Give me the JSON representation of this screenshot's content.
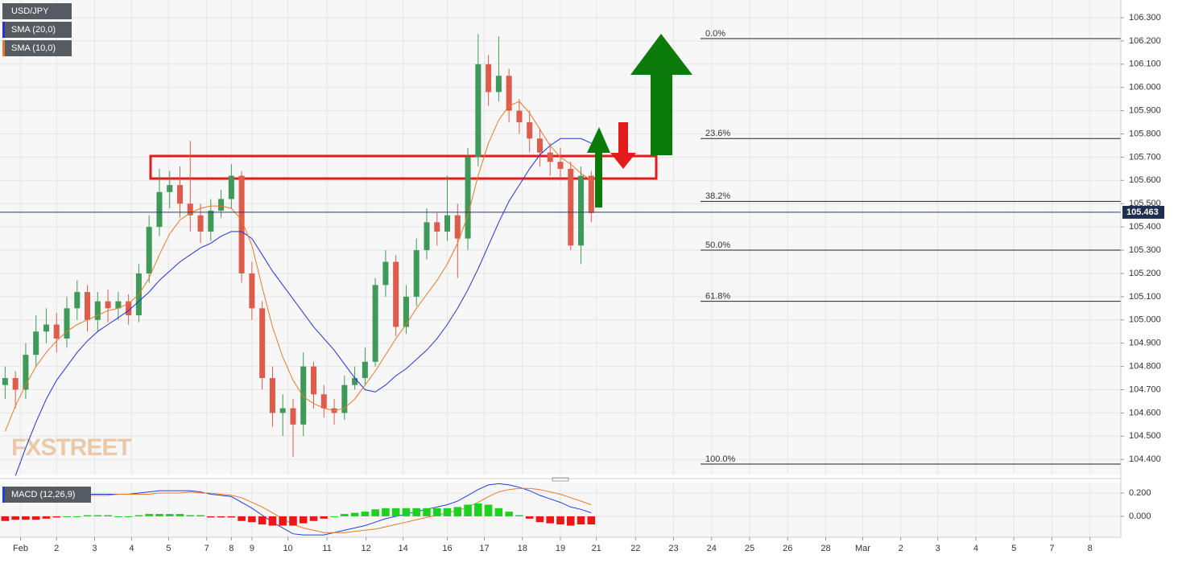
{
  "chart_data": [
    {
      "type": "candlestick",
      "name": "USD/JPY",
      "watermark": "FXSTREET",
      "up_color": "#3f9a5a",
      "down_color": "#dd5c4c",
      "x": [
        0,
        1,
        2,
        3,
        4,
        5,
        6,
        7,
        8,
        9,
        10,
        11,
        12,
        13,
        14,
        15,
        16,
        17,
        18,
        19,
        20,
        21,
        22,
        23,
        24,
        25,
        26,
        27,
        28,
        29,
        30,
        31,
        32,
        33,
        34,
        35,
        36,
        37,
        38,
        39,
        40,
        41,
        42,
        43,
        44,
        45,
        46,
        47,
        48,
        49,
        50,
        51,
        52,
        53,
        54,
        55,
        56,
        57
      ],
      "open": [
        104.72,
        104.75,
        104.7,
        104.85,
        104.95,
        104.98,
        104.92,
        105.05,
        105.12,
        105.0,
        105.08,
        105.05,
        105.08,
        105.02,
        105.2,
        105.4,
        105.55,
        105.58,
        105.5,
        105.45,
        105.38,
        105.47,
        105.52,
        105.62,
        105.2,
        105.05,
        104.75,
        104.6,
        104.62,
        104.55,
        104.8,
        104.68,
        104.62,
        104.6,
        104.72,
        104.75,
        104.82,
        105.15,
        105.25,
        104.97,
        105.1,
        105.3,
        105.42,
        105.38,
        105.45,
        105.35,
        105.7,
        106.1,
        105.98,
        106.05,
        105.9,
        105.85,
        105.78,
        105.72,
        105.68,
        105.65,
        105.32,
        105.62
      ],
      "high": [
        104.8,
        104.78,
        104.9,
        105.02,
        105.05,
        105.03,
        105.1,
        105.17,
        105.15,
        105.12,
        105.13,
        105.12,
        105.11,
        105.24,
        105.45,
        105.65,
        105.64,
        105.66,
        105.77,
        105.5,
        105.52,
        105.56,
        105.67,
        105.64,
        105.25,
        105.08,
        104.8,
        104.68,
        104.66,
        104.86,
        104.82,
        104.72,
        104.66,
        104.76,
        104.8,
        104.88,
        105.18,
        105.3,
        105.28,
        105.15,
        105.35,
        105.48,
        105.46,
        105.62,
        105.5,
        105.74,
        106.23,
        106.14,
        106.22,
        106.08,
        105.95,
        105.9,
        105.82,
        105.76,
        105.74,
        105.68,
        105.66,
        105.64
      ],
      "low": [
        104.66,
        104.62,
        104.66,
        104.8,
        104.9,
        104.86,
        104.88,
        105.0,
        104.95,
        104.95,
        104.99,
        105.0,
        104.98,
        104.99,
        105.16,
        105.36,
        105.48,
        105.44,
        105.38,
        105.33,
        105.34,
        105.44,
        105.48,
        105.16,
        105.0,
        104.7,
        104.54,
        104.5,
        104.41,
        104.5,
        104.62,
        104.58,
        104.55,
        104.57,
        104.7,
        104.72,
        104.8,
        105.1,
        104.93,
        104.94,
        105.06,
        105.26,
        105.32,
        105.34,
        105.18,
        105.3,
        105.66,
        105.92,
        105.94,
        105.85,
        105.8,
        105.72,
        105.66,
        105.62,
        105.6,
        105.3,
        105.24,
        105.42
      ],
      "close": [
        104.75,
        104.7,
        104.85,
        104.95,
        104.98,
        104.92,
        105.05,
        105.12,
        105.0,
        105.08,
        105.05,
        105.08,
        105.02,
        105.2,
        105.4,
        105.55,
        105.58,
        105.5,
        105.45,
        105.38,
        105.47,
        105.52,
        105.62,
        105.2,
        105.05,
        104.75,
        104.6,
        104.62,
        104.55,
        104.8,
        104.68,
        104.62,
        104.6,
        104.72,
        104.75,
        104.82,
        105.15,
        105.25,
        104.97,
        105.1,
        105.3,
        105.42,
        105.38,
        105.45,
        105.35,
        105.7,
        106.1,
        105.98,
        106.05,
        105.9,
        105.85,
        105.78,
        105.72,
        105.68,
        105.65,
        105.32,
        105.62,
        105.46
      ],
      "series": [
        {
          "name": "SMA (20,0)",
          "color": "#2432d8",
          "values": [
            null,
            104.33,
            104.45,
            104.56,
            104.66,
            104.74,
            104.8,
            104.86,
            104.91,
            104.95,
            104.98,
            105.01,
            105.04,
            105.08,
            105.12,
            105.17,
            105.21,
            105.25,
            105.28,
            105.31,
            105.33,
            105.36,
            105.38,
            105.38,
            105.35,
            105.28,
            105.21,
            105.15,
            105.09,
            105.03,
            104.97,
            104.92,
            104.87,
            104.81,
            104.75,
            104.7,
            104.69,
            104.72,
            104.76,
            104.79,
            104.83,
            104.87,
            104.92,
            104.98,
            105.05,
            105.13,
            105.22,
            105.32,
            105.42,
            105.51,
            105.58,
            105.65,
            105.71,
            105.75,
            105.78,
            105.78,
            105.78,
            105.76
          ]
        },
        {
          "name": "SMA (10,0)",
          "color": "#e8792a",
          "values": [
            104.52,
            104.63,
            104.72,
            104.8,
            104.86,
            104.91,
            104.95,
            104.98,
            105.0,
            105.02,
            105.04,
            105.05,
            105.07,
            105.11,
            105.18,
            105.28,
            105.37,
            105.43,
            105.46,
            105.48,
            105.49,
            105.49,
            105.48,
            105.43,
            105.32,
            105.14,
            104.97,
            104.84,
            104.74,
            104.67,
            104.64,
            104.62,
            104.61,
            104.62,
            104.66,
            104.72,
            104.78,
            104.85,
            104.92,
            104.98,
            105.05,
            105.11,
            105.17,
            105.24,
            105.33,
            105.45,
            105.62,
            105.76,
            105.86,
            105.92,
            105.94,
            105.89,
            105.82,
            105.75,
            105.7,
            105.67,
            105.63,
            105.6
          ]
        }
      ],
      "annotations": [
        {
          "label": "0.0%",
          "value": 106.21
        },
        {
          "label": "23.6%",
          "value": 105.78
        },
        {
          "label": "38.2%",
          "value": 105.51
        },
        {
          "label": "50.0%",
          "value": 105.3
        },
        {
          "label": "61.8%",
          "value": 105.08
        },
        {
          "label": "100.0%",
          "value": 104.38
        }
      ],
      "last_price": 105.463,
      "xlim": [
        -0.5,
        108.5
      ],
      "ylim": [
        104.335,
        106.376
      ],
      "yticks": [
        {
          "value": 104.4,
          "label": "104.400"
        },
        {
          "value": 104.5,
          "label": "104.500"
        },
        {
          "value": 104.6,
          "label": "104.600"
        },
        {
          "value": 104.7,
          "label": "104.700"
        },
        {
          "value": 104.8,
          "label": "104.800"
        },
        {
          "value": 104.9,
          "label": "104.900"
        },
        {
          "value": 105.0,
          "label": "105.000"
        },
        {
          "value": 105.1,
          "label": "105.100"
        },
        {
          "value": 105.2,
          "label": "105.200"
        },
        {
          "value": 105.3,
          "label": "105.300"
        },
        {
          "value": 105.4,
          "label": "105.400"
        },
        {
          "value": 105.5,
          "label": "105.500"
        },
        {
          "value": 105.6,
          "label": "105.600"
        },
        {
          "value": 105.7,
          "label": "105.700"
        },
        {
          "value": 105.8,
          "label": "105.800"
        },
        {
          "value": 105.9,
          "label": "105.900"
        },
        {
          "value": 106.0,
          "label": "106.000"
        },
        {
          "value": 106.1,
          "label": "106.100"
        },
        {
          "value": 106.2,
          "label": "106.200"
        },
        {
          "value": 106.3,
          "label": "106.300"
        }
      ],
      "grid": true
    },
    {
      "type": "macd",
      "name": "MACD (12,26,9)",
      "x": [
        0,
        1,
        2,
        3,
        4,
        5,
        6,
        7,
        8,
        9,
        10,
        11,
        12,
        13,
        14,
        15,
        16,
        17,
        18,
        19,
        20,
        21,
        22,
        23,
        24,
        25,
        26,
        27,
        28,
        29,
        30,
        31,
        32,
        33,
        34,
        35,
        36,
        37,
        38,
        39,
        40,
        41,
        42,
        43,
        44,
        45,
        46,
        47,
        48,
        49,
        50,
        51,
        52,
        53,
        54,
        55,
        56,
        57
      ],
      "series": [
        {
          "name": "MACD",
          "type": "line",
          "color": "#1f3fd6",
          "values": [
            0.21,
            0.21,
            0.2,
            0.19,
            0.19,
            0.19,
            0.19,
            0.19,
            0.19,
            0.19,
            0.19,
            0.19,
            0.19,
            0.2,
            0.21,
            0.22,
            0.22,
            0.22,
            0.22,
            0.21,
            0.19,
            0.18,
            0.17,
            0.12,
            0.07,
            0.01,
            -0.05,
            -0.1,
            -0.15,
            -0.16,
            -0.16,
            -0.16,
            -0.14,
            -0.12,
            -0.1,
            -0.08,
            -0.05,
            -0.02,
            0.0,
            0.02,
            0.04,
            0.06,
            0.08,
            0.1,
            0.13,
            0.18,
            0.23,
            0.27,
            0.28,
            0.27,
            0.25,
            0.22,
            0.18,
            0.15,
            0.12,
            0.08,
            0.06,
            0.03
          ]
        },
        {
          "name": "Signal",
          "type": "line",
          "color": "#e8792a",
          "values": [
            0.25,
            0.24,
            0.23,
            0.22,
            0.21,
            0.2,
            0.19,
            0.19,
            0.18,
            0.18,
            0.18,
            0.19,
            0.19,
            0.19,
            0.19,
            0.2,
            0.2,
            0.2,
            0.21,
            0.2,
            0.2,
            0.19,
            0.18,
            0.16,
            0.12,
            0.08,
            0.03,
            -0.02,
            -0.07,
            -0.1,
            -0.12,
            -0.14,
            -0.14,
            -0.14,
            -0.13,
            -0.12,
            -0.11,
            -0.09,
            -0.07,
            -0.05,
            -0.03,
            -0.01,
            0.01,
            0.03,
            0.05,
            0.08,
            0.12,
            0.17,
            0.21,
            0.23,
            0.24,
            0.24,
            0.23,
            0.21,
            0.19,
            0.16,
            0.13,
            0.1
          ]
        },
        {
          "name": "Histogram",
          "type": "bar",
          "color": "#1fd11f",
          "negative_color": "#ee1515",
          "values": [
            -0.04,
            -0.03,
            -0.03,
            -0.03,
            -0.02,
            -0.01,
            0,
            0,
            0.01,
            0.01,
            0.01,
            0,
            0,
            0.01,
            0.02,
            0.02,
            0.02,
            0.02,
            0.01,
            0.01,
            -0.01,
            -0.01,
            -0.01,
            -0.04,
            -0.05,
            -0.07,
            -0.08,
            -0.08,
            -0.08,
            -0.06,
            -0.04,
            -0.02,
            0,
            0.02,
            0.03,
            0.04,
            0.06,
            0.07,
            0.07,
            0.07,
            0.07,
            0.07,
            0.07,
            0.07,
            0.08,
            0.1,
            0.11,
            0.1,
            0.07,
            0.04,
            0.01,
            -0.02,
            -0.05,
            -0.06,
            -0.07,
            -0.08,
            -0.07,
            -0.07
          ]
        }
      ],
      "xlim": [
        -0.5,
        108.5
      ],
      "xticks": [
        {
          "value": 1.5,
          "label": "Feb"
        },
        {
          "value": 5.0,
          "label": "2"
        },
        {
          "value": 8.7,
          "label": "3"
        },
        {
          "value": 12.3,
          "label": "4"
        },
        {
          "value": 15.9,
          "label": "5"
        },
        {
          "value": 19.6,
          "label": "7"
        },
        {
          "value": 22.0,
          "label": "8"
        },
        {
          "value": 24.0,
          "label": "9"
        },
        {
          "value": 27.5,
          "label": "10"
        },
        {
          "value": 31.3,
          "label": "11"
        },
        {
          "value": 35.1,
          "label": "12"
        },
        {
          "value": 38.7,
          "label": "14"
        },
        {
          "value": 43.0,
          "label": "16"
        },
        {
          "value": 46.6,
          "label": "17"
        },
        {
          "value": 50.3,
          "label": "18"
        },
        {
          "value": 54.0,
          "label": "19"
        },
        {
          "value": 57.5,
          "label": "21"
        },
        {
          "value": 61.3,
          "label": "22"
        },
        {
          "value": 65.0,
          "label": "23"
        },
        {
          "value": 68.7,
          "label": "24"
        },
        {
          "value": 72.4,
          "label": "25"
        },
        {
          "value": 76.1,
          "label": "26"
        },
        {
          "value": 79.8,
          "label": "28"
        },
        {
          "value": 83.4,
          "label": "Mar"
        },
        {
          "value": 87.1,
          "label": "2"
        },
        {
          "value": 90.7,
          "label": "3"
        },
        {
          "value": 94.4,
          "label": "4"
        },
        {
          "value": 98.1,
          "label": "5"
        },
        {
          "value": 101.8,
          "label": "7"
        },
        {
          "value": 105.5,
          "label": "8"
        }
      ],
      "ylim": [
        -0.18,
        0.29
      ],
      "yticks": [
        {
          "value": 0,
          "label": "0.000"
        },
        {
          "value": 0.2,
          "label": "0.200"
        }
      ],
      "grid": true
    }
  ]
}
